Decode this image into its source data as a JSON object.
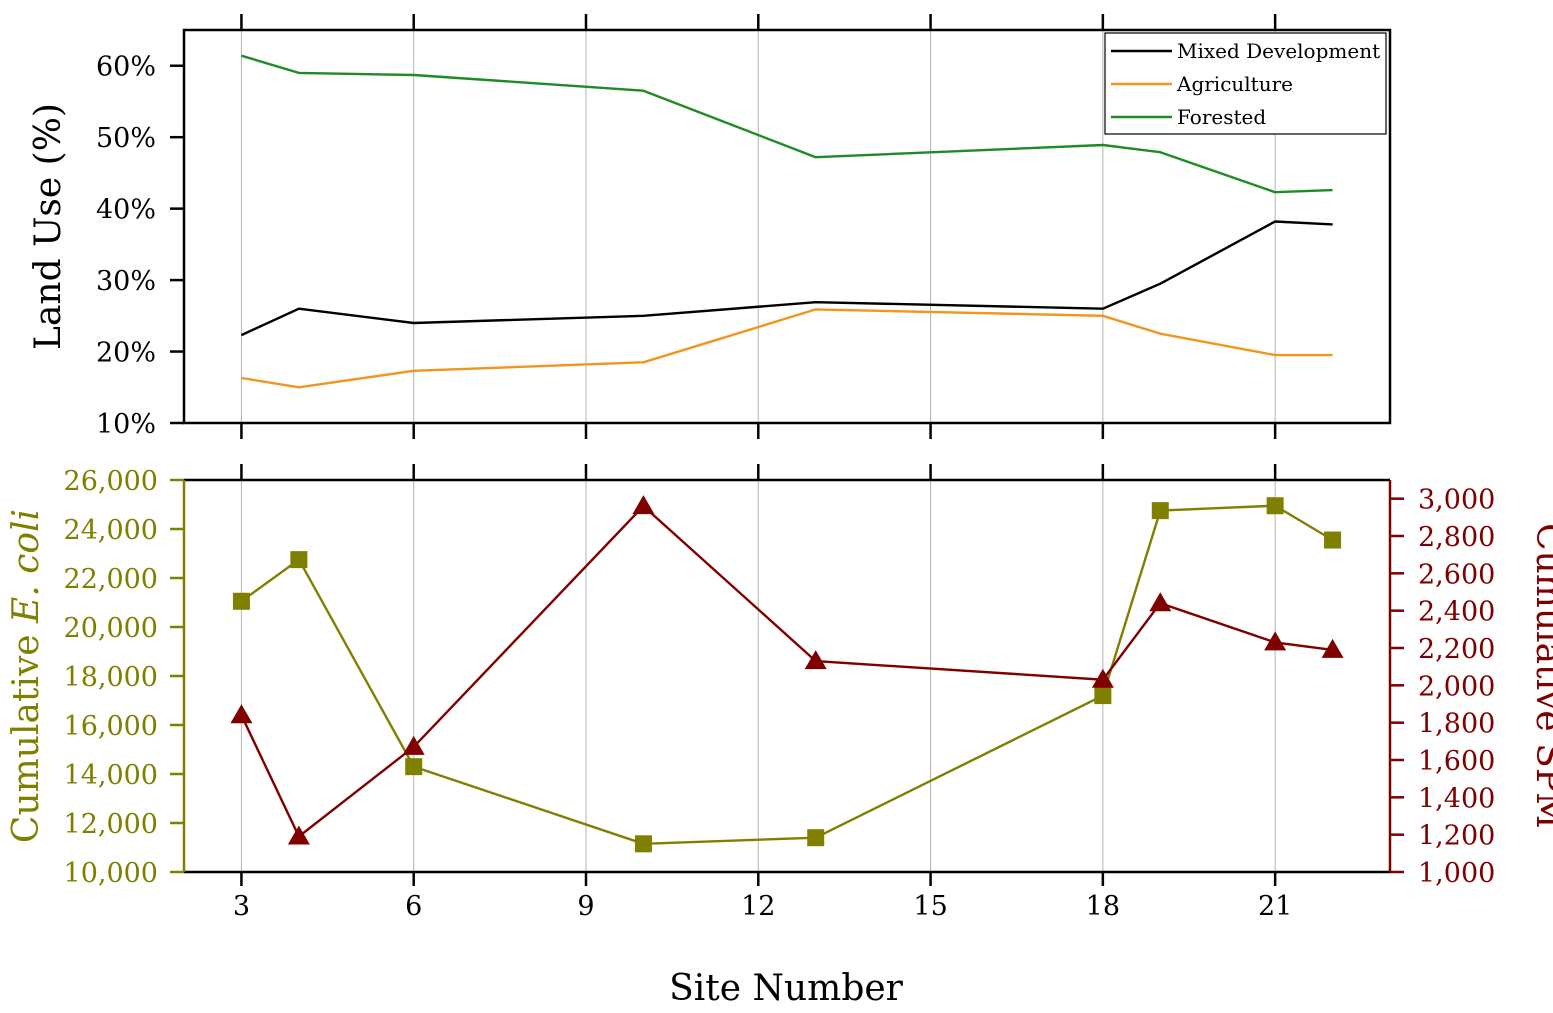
{
  "chart_data": [
    {
      "type": "line",
      "panel": "top",
      "ylabel": "Land Use (%)",
      "ylim": [
        10,
        65
      ],
      "yticks": [
        10,
        20,
        30,
        40,
        50,
        60
      ],
      "ytick_labels": [
        "10%",
        "20%",
        "30%",
        "40%",
        "50%",
        "60%"
      ],
      "xlim": [
        2,
        23
      ],
      "x": [
        3,
        4,
        6,
        10,
        13,
        18,
        19,
        21,
        22
      ],
      "legend_position": "top-right",
      "series": [
        {
          "name": "Mixed Development",
          "color": "#000000",
          "values": [
            22.3,
            26.0,
            24.0,
            25.0,
            26.9,
            26.0,
            29.5,
            38.2,
            37.8
          ]
        },
        {
          "name": "Agriculture",
          "color": "#f39420",
          "values": [
            16.3,
            15.0,
            17.3,
            18.5,
            25.9,
            25.0,
            22.5,
            19.5,
            19.5
          ]
        },
        {
          "name": "Forested",
          "color": "#1f8b25",
          "values": [
            61.4,
            59.0,
            58.7,
            56.5,
            47.2,
            48.9,
            47.9,
            42.3,
            42.6
          ]
        }
      ]
    },
    {
      "type": "line",
      "panel": "bottom",
      "xlabel": "Site Number",
      "xlim": [
        2,
        23
      ],
      "xticks": [
        3,
        6,
        9,
        12,
        15,
        18,
        21
      ],
      "xtick_labels": [
        "3",
        "6",
        "9",
        "12",
        "15",
        "18",
        "21"
      ],
      "x": [
        3,
        4,
        6,
        10,
        13,
        18,
        19,
        21,
        22
      ],
      "left_axis": {
        "label_prefix": "Cumulative ",
        "label_italic": "E. coli",
        "ylim": [
          10000,
          26000
        ],
        "yticks": [
          10000,
          12000,
          14000,
          16000,
          18000,
          20000,
          22000,
          24000,
          26000
        ],
        "ytick_labels": [
          "10,000",
          "12,000",
          "14,000",
          "16,000",
          "18,000",
          "20,000",
          "22,000",
          "24,000",
          "26,000"
        ],
        "color": "#808000"
      },
      "right_axis": {
        "label": "Cumulative SPM",
        "ylim": [
          1000,
          3100
        ],
        "yticks": [
          1000,
          1200,
          1400,
          1600,
          1800,
          2000,
          2200,
          2400,
          2600,
          2800,
          3000
        ],
        "ytick_labels": [
          "1,000",
          "1,200",
          "1,400",
          "1,600",
          "1,800",
          "2,000",
          "2,200",
          "2,400",
          "2,600",
          "2,800",
          "3,000"
        ],
        "color": "#800000"
      },
      "series": [
        {
          "name": "Cumulative E. coli",
          "axis": "left",
          "marker": "square",
          "color": "#808000",
          "values": [
            21050,
            22750,
            14300,
            11150,
            11400,
            17200,
            24750,
            24950,
            23550
          ]
        },
        {
          "name": "Cumulative SPM",
          "axis": "right",
          "marker": "triangle",
          "color": "#800000",
          "values": [
            1840,
            1190,
            1670,
            2960,
            2130,
            2030,
            2440,
            2230,
            2190
          ]
        }
      ]
    }
  ]
}
